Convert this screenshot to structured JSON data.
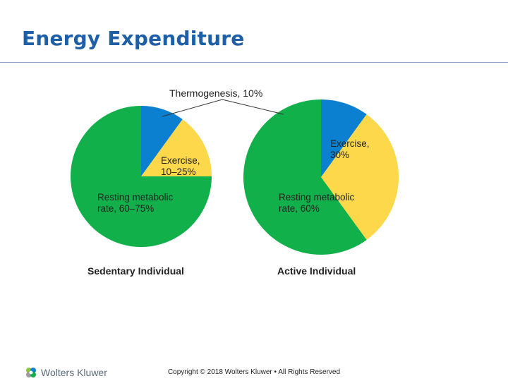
{
  "slide": {
    "title": "Energy Expenditure",
    "copyright": "Copyright © 2018 Wolters Kluwer • All Rights Reserved",
    "brand": "Wolters Kluwer"
  },
  "colors": {
    "title": "#1f5fa8",
    "rule": "#8aa6c8",
    "resting": "#12b04a",
    "thermogenesis": "#0b7fd0",
    "exercise": "#fcd84a"
  },
  "chart_data": [
    {
      "type": "pie",
      "title": "Sedentary Individual",
      "slices": [
        {
          "key": "thermogenesis",
          "label": "Thermogenesis, 10%",
          "value": 10,
          "color": "#0b7fd0"
        },
        {
          "key": "exercise",
          "label": "Exercise,\n10–25%",
          "value": 15,
          "color": "#fcd84a"
        },
        {
          "key": "resting",
          "label": "Resting metabolic\nrate, 60–75%",
          "value": 75,
          "color": "#12b04a"
        }
      ]
    },
    {
      "type": "pie",
      "title": "Active Individual",
      "slices": [
        {
          "key": "thermogenesis",
          "label": "Thermogenesis, 10%",
          "value": 10,
          "color": "#0b7fd0"
        },
        {
          "key": "exercise",
          "label": "Exercise,\n30%",
          "value": 30,
          "color": "#fcd84a"
        },
        {
          "key": "resting",
          "label": "Resting metabolic\nrate, 60%",
          "value": 60,
          "color": "#12b04a"
        }
      ]
    }
  ],
  "shared_label": "Thermogenesis, 10%"
}
